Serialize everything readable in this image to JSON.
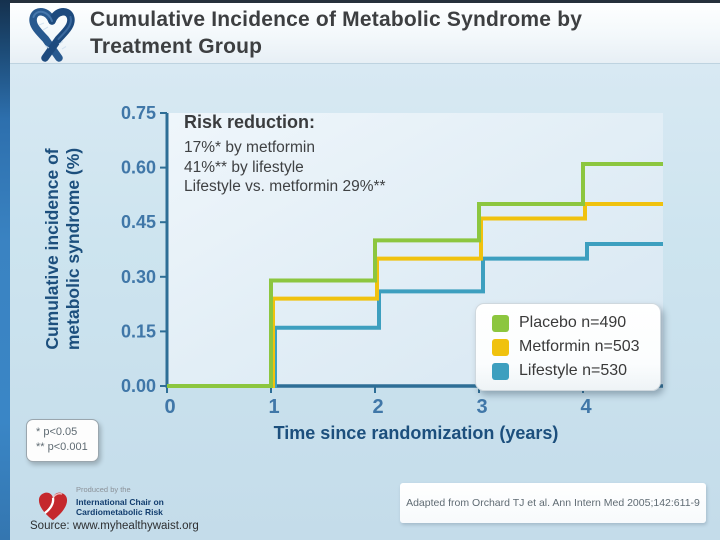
{
  "header": {
    "title": "Cumulative Incidence of Metabolic Syndrome by Treatment Group"
  },
  "annotation": {
    "title": "Risk reduction:",
    "lines": [
      "17%* by metformin",
      "41%** by lifestyle",
      "Lifestyle vs. metformin 29%**"
    ]
  },
  "chart_data": {
    "type": "line",
    "subtype": "step-after",
    "title": "Cumulative Incidence of Metabolic Syndrome by Treatment Group",
    "x": [
      0,
      1,
      2,
      3,
      4
    ],
    "series": [
      {
        "name": "Placebo n=490",
        "color": "#8CC63F",
        "values": [
          0,
          0.29,
          0.4,
          0.5,
          0.61
        ]
      },
      {
        "name": "Metformin n=503",
        "color": "#F0C20E",
        "values": [
          0,
          0.24,
          0.35,
          0.46,
          0.5
        ]
      },
      {
        "name": "Lifestyle n=530",
        "color": "#3D9FBF",
        "values": [
          0,
          0.16,
          0.26,
          0.35,
          0.39
        ]
      }
    ],
    "xlabel": "Time since randomization (years)",
    "ylabel": "Cumulative incidence of metabolic syndrome (%)",
    "ylabel_lines": [
      "Cumulative incidence of",
      "metabolic syndrome (%)"
    ],
    "x_ticks": [
      "0",
      "1",
      "2",
      "3",
      "4"
    ],
    "y_ticks": [
      "0.00",
      "0.15",
      "0.30",
      "0.45",
      "0.60",
      "0.75"
    ],
    "xlim": [
      0,
      4.77
    ],
    "ylim": [
      0,
      0.75
    ],
    "grid": false,
    "legend_position": "inside-right"
  },
  "footnotes": {
    "line1": "* p<0.05",
    "line2": "** p<0.001"
  },
  "citation": "Adapted from Orchard TJ et al. Ann Intern Med 2005;142:611-9",
  "source": "Source: www.myhealthywaist.org",
  "logo": {
    "produced_by": "Produced by the",
    "org_line1": "International Chair on",
    "org_line2": "Cardiometabolic Risk"
  },
  "colors": {
    "axis": "#2E6E96",
    "tick_label": "#4077A8",
    "axis_title": "#1C4F7D",
    "side_strip": "#3A86C6",
    "heart_logo_red": "#C5282D",
    "ribbon_blue": "#28598F"
  }
}
